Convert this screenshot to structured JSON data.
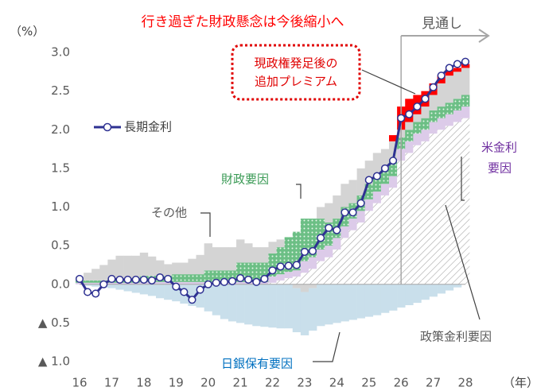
{
  "chart_data": {
    "type": "stacked_bar_line",
    "title": "行き過ぎた財政懸念は今後縮小へ",
    "y_unit": "（%）",
    "x_unit": "（年）",
    "projection_label": "見通し",
    "projection_start": 26,
    "x": [
      16,
      16.25,
      16.5,
      16.75,
      17,
      17.25,
      17.5,
      17.75,
      18,
      18.25,
      18.5,
      18.75,
      19,
      19.25,
      19.5,
      19.75,
      20,
      20.25,
      20.5,
      20.75,
      21,
      21.25,
      21.5,
      21.75,
      22,
      22.25,
      22.5,
      22.75,
      23,
      23.25,
      23.5,
      23.75,
      24,
      24.25,
      24.5,
      24.75,
      25,
      25.25,
      25.5,
      25.75,
      26,
      26.25,
      26.5,
      26.75,
      27,
      27.25,
      27.5,
      27.75,
      28
    ],
    "xlim": [
      16,
      28
    ],
    "xticks": [
      16,
      17,
      18,
      19,
      20,
      21,
      22,
      23,
      24,
      25,
      26,
      27,
      28
    ],
    "ylim": [
      -1,
      3
    ],
    "yticks": [
      {
        "value": 3,
        "label": "3.0"
      },
      {
        "value": 2.5,
        "label": "2.5"
      },
      {
        "value": 2,
        "label": "2.0"
      },
      {
        "value": 1.5,
        "label": "1.5"
      },
      {
        "value": 1,
        "label": "1.0"
      },
      {
        "value": 0.5,
        "label": "0.5"
      },
      {
        "value": 0,
        "label": "0.0"
      },
      {
        "value": -0.5,
        "label": "▲ 0.5"
      },
      {
        "value": -1,
        "label": "▲ 1.0"
      }
    ],
    "bar_series": [
      {
        "label": [
          "政策金利要因"
        ],
        "color": "#9a9a9a",
        "pattern": "hatch",
        "values": [
          0,
          0,
          0,
          0,
          0,
          0,
          0,
          0,
          0,
          0,
          0,
          0,
          0,
          0,
          0,
          0,
          0,
          0,
          0,
          0,
          0,
          0,
          0,
          0,
          0.02,
          0.05,
          0.08,
          0.1,
          0.15,
          0.2,
          0.3,
          0.35,
          0.45,
          0.6,
          0.7,
          0.8,
          0.95,
          1.05,
          1.15,
          1.25,
          1.6,
          1.7,
          1.8,
          1.85,
          1.95,
          2,
          2.05,
          2.1,
          2.15
        ]
      },
      {
        "label": [
          "米金利",
          "要因"
        ],
        "color": "#dccbe9",
        "pattern": "solid",
        "values": [
          0.02,
          0.02,
          0.02,
          0.02,
          0.02,
          0.02,
          0.02,
          0.02,
          0.03,
          0.03,
          0.03,
          0.03,
          0.03,
          0.03,
          0.03,
          0.03,
          0.03,
          0.03,
          0.03,
          0.03,
          0.03,
          0.03,
          0.03,
          0.03,
          0.08,
          0.08,
          0.08,
          0.08,
          0.15,
          0.15,
          0.15,
          0.15,
          0.15,
          0.15,
          0.15,
          0.15,
          0.15,
          0.15,
          0.15,
          0.15,
          0.15,
          0.15,
          0.15,
          0.15,
          0.15,
          0.15,
          0.15,
          0.15,
          0.15
        ]
      },
      {
        "label": [
          "財政要因"
        ],
        "color": "#6cbf85",
        "pattern": "dots",
        "values": [
          0.03,
          0.03,
          0.03,
          0.03,
          0.05,
          0.05,
          0.05,
          0.05,
          0.08,
          0.08,
          0.08,
          0.08,
          0.1,
          0.1,
          0.1,
          0.1,
          0.15,
          0.15,
          0.15,
          0.15,
          0.25,
          0.25,
          0.25,
          0.25,
          0.3,
          0.35,
          0.45,
          0.5,
          0.55,
          0.5,
          0.4,
          0.3,
          0.25,
          0.25,
          0.2,
          0.2,
          0.2,
          0.2,
          0.2,
          0.2,
          0.15,
          0.15,
          0.15,
          0.15,
          0.15,
          0.15,
          0.15,
          0.15,
          0.15
        ]
      },
      {
        "label": [
          "その他"
        ],
        "color": "#d4d4d4",
        "pattern": "solid",
        "values": [
          0.05,
          0.1,
          0.15,
          0.2,
          0.25,
          0.3,
          0.3,
          0.3,
          0.3,
          0.25,
          0.2,
          0.15,
          0.15,
          0.15,
          0.2,
          0.25,
          0.35,
          0.3,
          0.3,
          0.3,
          0.3,
          0.25,
          0.2,
          0.2,
          0.15,
          0.1,
          0,
          -0.05,
          -0.1,
          -0.05,
          0.15,
          0.25,
          0.3,
          0.3,
          0.3,
          0.35,
          0.3,
          0.3,
          0.25,
          0.25,
          0.1,
          0.1,
          0.1,
          0.15,
          0.2,
          0.3,
          0.35,
          0.35,
          0.35
        ]
      },
      {
        "label": [
          "現政権発足後の",
          "追加プレミアム"
        ],
        "color": "#ff0000",
        "pattern": "solid",
        "values": [
          0,
          0,
          0,
          0,
          0,
          0,
          0,
          0,
          0,
          0,
          0,
          0,
          0,
          0,
          0,
          0,
          0,
          0,
          0,
          0,
          0,
          0,
          0,
          0,
          0,
          0,
          0,
          0,
          0,
          0,
          0,
          0,
          0,
          0,
          0,
          0,
          0,
          0,
          0,
          0.08,
          0.3,
          0.3,
          0.25,
          0.2,
          0.15,
          0.1,
          0.08,
          0.05,
          0.05
        ]
      },
      {
        "label": [
          "日銀保有要因"
        ],
        "color": "#c9dfeb",
        "pattern": "solid",
        "values": [
          0,
          -0.02,
          -0.03,
          -0.04,
          -0.05,
          -0.07,
          -0.09,
          -0.11,
          -0.13,
          -0.15,
          -0.18,
          -0.2,
          -0.22,
          -0.25,
          -0.28,
          -0.3,
          -0.35,
          -0.4,
          -0.45,
          -0.48,
          -0.5,
          -0.52,
          -0.54,
          -0.55,
          -0.56,
          -0.57,
          -0.57,
          -0.57,
          -0.56,
          -0.55,
          -0.54,
          -0.52,
          -0.5,
          -0.48,
          -0.46,
          -0.44,
          -0.42,
          -0.4,
          -0.37,
          -0.34,
          -0.3,
          -0.27,
          -0.24,
          -0.2,
          -0.16,
          -0.12,
          -0.08,
          -0.04,
          0
        ]
      }
    ],
    "series": [
      {
        "name": "長期金利",
        "color": "#2e3192",
        "values": [
          0.07,
          -0.1,
          -0.12,
          0,
          0.07,
          0.06,
          0.06,
          0.06,
          0.06,
          0.05,
          0.09,
          0.07,
          -0.03,
          -0.1,
          -0.2,
          -0.07,
          0,
          0.02,
          0.03,
          0.04,
          0.08,
          0.06,
          0.03,
          0.07,
          0.18,
          0.23,
          0.24,
          0.25,
          0.42,
          0.43,
          0.6,
          0.73,
          0.7,
          0.93,
          0.93,
          1.05,
          1.35,
          1.4,
          1.5,
          1.6,
          2.15,
          2.2,
          2.3,
          2.4,
          2.55,
          2.7,
          2.8,
          2.85,
          2.88
        ]
      }
    ]
  }
}
